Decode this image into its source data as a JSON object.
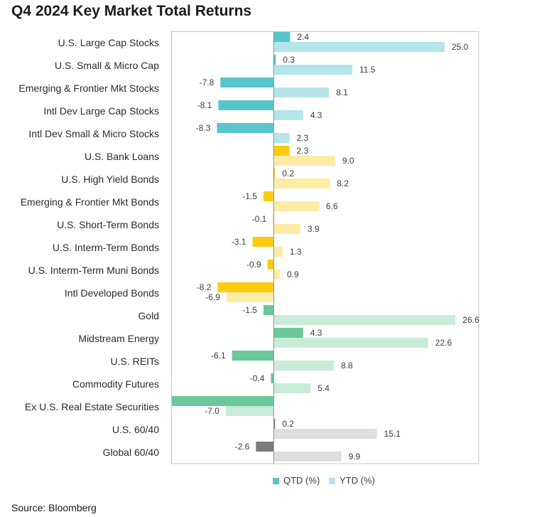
{
  "chart_data": {
    "type": "bar",
    "orientation": "horizontal",
    "title": "Q4 2024 Key Market Total Returns",
    "xlabel": "",
    "ylabel": "",
    "xlim": [
      -15,
      30
    ],
    "grid": false,
    "axis_ticks": false,
    "legend": "bottom",
    "categories": [
      "U.S. Large Cap Stocks",
      "U.S. Small & Micro Cap",
      "Emerging & Frontier Mkt Stocks",
      "Intl Dev Large Cap Stocks",
      "Intl Dev Small & Micro Stocks",
      "U.S. Bank Loans",
      "U.S. High Yield Bonds",
      "Emerging & Frontier Mkt Bonds",
      "U.S. Short-Term Bonds",
      "U.S. Interm-Term Bonds",
      "U.S. Interm-Term Muni Bonds",
      "Intl Developed Bonds",
      "Gold",
      "Midstream Energy",
      "U.S. REITs",
      "Commodity Futures",
      "Ex U.S. Real Estate Securities",
      "U.S. 60/40",
      "Global 60/40"
    ],
    "series": [
      {
        "name": "QTD (%)",
        "values": [
          2.4,
          0.3,
          -7.8,
          -8.1,
          -8.3,
          2.3,
          0.2,
          -1.5,
          -0.1,
          -3.1,
          -0.9,
          -8.2,
          -1.5,
          4.3,
          -6.1,
          -0.4,
          -15.0,
          0.2,
          -2.6
        ],
        "labels": [
          "2.4",
          "0.3",
          "-7.8",
          "-8.1",
          "-8.3",
          "2.3",
          "0.2",
          "-1.5",
          "-0.1",
          "-3.1",
          "-0.9",
          "-8.2",
          "-1.5",
          "4.3",
          "-6.1",
          "-0.4",
          null,
          "0.2",
          "-2.6"
        ],
        "colors": [
          "#58C4CC",
          "#58C4CC",
          "#58C4CC",
          "#58C4CC",
          "#58C4CC",
          "#FCCB0E",
          "#FCCB0E",
          "#FCCB0E",
          "#FCCB0E",
          "#FCCB0E",
          "#FCCB0E",
          "#FCCB0E",
          "#6AC89A",
          "#6AC89A",
          "#6AC89A",
          "#6AC89A",
          "#6AC89A",
          "#7C7C7C",
          "#7C7C7C"
        ]
      },
      {
        "name": "YTD (%)",
        "values": [
          25.0,
          11.5,
          8.1,
          4.3,
          2.3,
          9.0,
          8.2,
          6.6,
          3.9,
          1.3,
          0.9,
          -6.9,
          26.6,
          22.6,
          8.8,
          5.4,
          -7.0,
          15.1,
          9.9
        ],
        "labels": [
          "25.0",
          "11.5",
          "8.1",
          "4.3",
          "2.3",
          "9.0",
          "8.2",
          "6.6",
          "3.9",
          "1.3",
          "0.9",
          "-6.9",
          "26.6",
          "22.6",
          "8.8",
          "5.4",
          "-7.0",
          "15.1",
          "9.9"
        ],
        "colors": [
          "#B4E5E9",
          "#B4E5E9",
          "#B4E5E9",
          "#B4E5E9",
          "#B4E5E9",
          "#FEEBA4",
          "#FEEBA4",
          "#FEEBA4",
          "#FEEBA4",
          "#FEEBA4",
          "#FEEBA4",
          "#FEEBA4",
          "#C8ECD8",
          "#C8ECD8",
          "#C8ECD8",
          "#C8ECD8",
          "#C8ECD8",
          "#DEDEDE",
          "#DEDEDE"
        ]
      }
    ]
  },
  "source": "Source: Bloomberg"
}
